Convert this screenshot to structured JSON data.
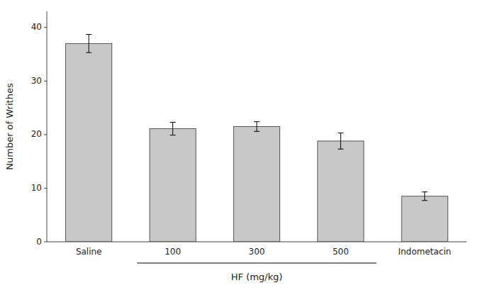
{
  "chart_data": {
    "type": "bar",
    "categories": [
      "Saline",
      "100",
      "300",
      "500",
      "Indometacin"
    ],
    "values": [
      37.0,
      21.1,
      21.5,
      18.8,
      8.5
    ],
    "errors": [
      1.7,
      1.2,
      0.9,
      1.5,
      0.8
    ],
    "color": "#c8c8c8",
    "ylabel": "Number of Writhes",
    "xlabel": "HF (mg/kg)",
    "ylim": [
      0,
      43
    ],
    "yticks": [
      0,
      10,
      20,
      30,
      40
    ],
    "grid": false
  }
}
